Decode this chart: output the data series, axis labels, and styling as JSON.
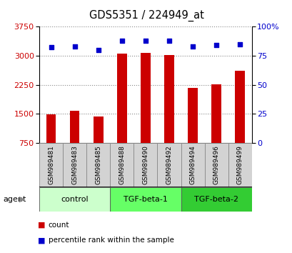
{
  "title": "GDS5351 / 224949_at",
  "samples": [
    "GSM989481",
    "GSM989483",
    "GSM989485",
    "GSM989488",
    "GSM989490",
    "GSM989492",
    "GSM989494",
    "GSM989496",
    "GSM989499"
  ],
  "counts": [
    1490,
    1580,
    1430,
    3050,
    3080,
    3020,
    2170,
    2270,
    2620
  ],
  "percentiles": [
    82,
    83,
    80,
    88,
    88,
    88,
    83,
    84,
    85
  ],
  "ylim_left": [
    750,
    3750
  ],
  "ylim_right": [
    0,
    100
  ],
  "yticks_left": [
    750,
    1500,
    2250,
    3000,
    3750
  ],
  "yticks_right": [
    0,
    25,
    50,
    75,
    100
  ],
  "groups": [
    {
      "label": "control",
      "start": 0,
      "end": 3,
      "color": "#ccffcc"
    },
    {
      "label": "TGF-beta-1",
      "start": 3,
      "end": 6,
      "color": "#66ff66"
    },
    {
      "label": "TGF-beta-2",
      "start": 6,
      "end": 9,
      "color": "#33cc33"
    }
  ],
  "bar_color": "#cc0000",
  "dot_color": "#0000cc",
  "tick_label_color_left": "#cc0000",
  "tick_label_color_right": "#0000cc",
  "grid_color": "#888888",
  "background_color": "#ffffff",
  "plot_bg_color": "#ffffff",
  "agent_label": "agent",
  "legend_count_label": "count",
  "legend_percentile_label": "percentile rank within the sample",
  "bar_width": 0.4
}
